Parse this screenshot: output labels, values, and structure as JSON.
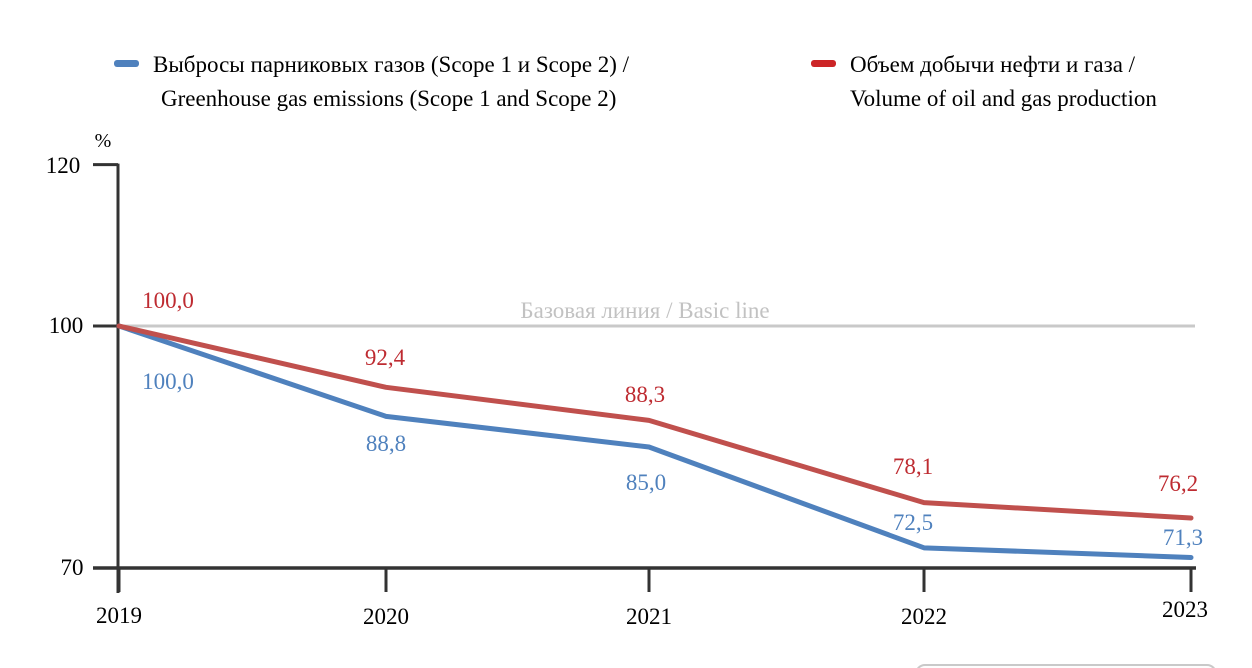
{
  "legend": {
    "items": [
      {
        "line1": "Выбросы парниковых газов (Scope 1 и Scope 2) /",
        "line2": "Greenhouse gas emissions (Scope 1 and Scope 2)",
        "color": "#4F81BD"
      },
      {
        "line1": "Объем добычи нефти и газа /",
        "line2": "Volume of oil and gas production",
        "color": "#CC2527"
      }
    ]
  },
  "axis": {
    "unit_label": "%",
    "yticks": [
      "120",
      "100",
      "70"
    ],
    "xticks": [
      "2019",
      "2020",
      "2021",
      "2022",
      "2023"
    ]
  },
  "chart_data": {
    "type": "line",
    "title": "",
    "xlabel": "",
    "ylabel": "%",
    "x": [
      2019,
      2020,
      2021,
      2022,
      2023
    ],
    "ylim": [
      70,
      120
    ],
    "ytick_values": [
      120,
      100,
      70
    ],
    "grid": false,
    "legend_position": "top",
    "baseline": {
      "value": 100.0,
      "label": "Базовая линия / Basic line",
      "color": "#c9c9c9"
    },
    "series": [
      {
        "name": "Выбросы парниковых газов (Scope 1 и Scope 2) / Greenhouse gas emissions (Scope 1 and Scope 2)",
        "color": "#4F81BD",
        "label_color": "#4F81BD",
        "values": [
          100.0,
          88.8,
          85.0,
          72.5,
          71.3
        ],
        "point_labels": [
          "100,0",
          "88,8",
          "85,0",
          "72,5",
          "71,3"
        ]
      },
      {
        "name": "Объем добычи нефти и газа / Volume of oil and gas production",
        "color": "#C0504D",
        "label_color": "#BE2B31",
        "values": [
          100.0,
          92.4,
          88.3,
          78.1,
          76.2
        ],
        "point_labels": [
          "100,0",
          "92,4",
          "88,3",
          "78,1",
          "76,2"
        ]
      }
    ]
  },
  "colors": {
    "axis": "#333333",
    "tick_text": "#000000",
    "baseline_text": "#c2c2c2"
  }
}
